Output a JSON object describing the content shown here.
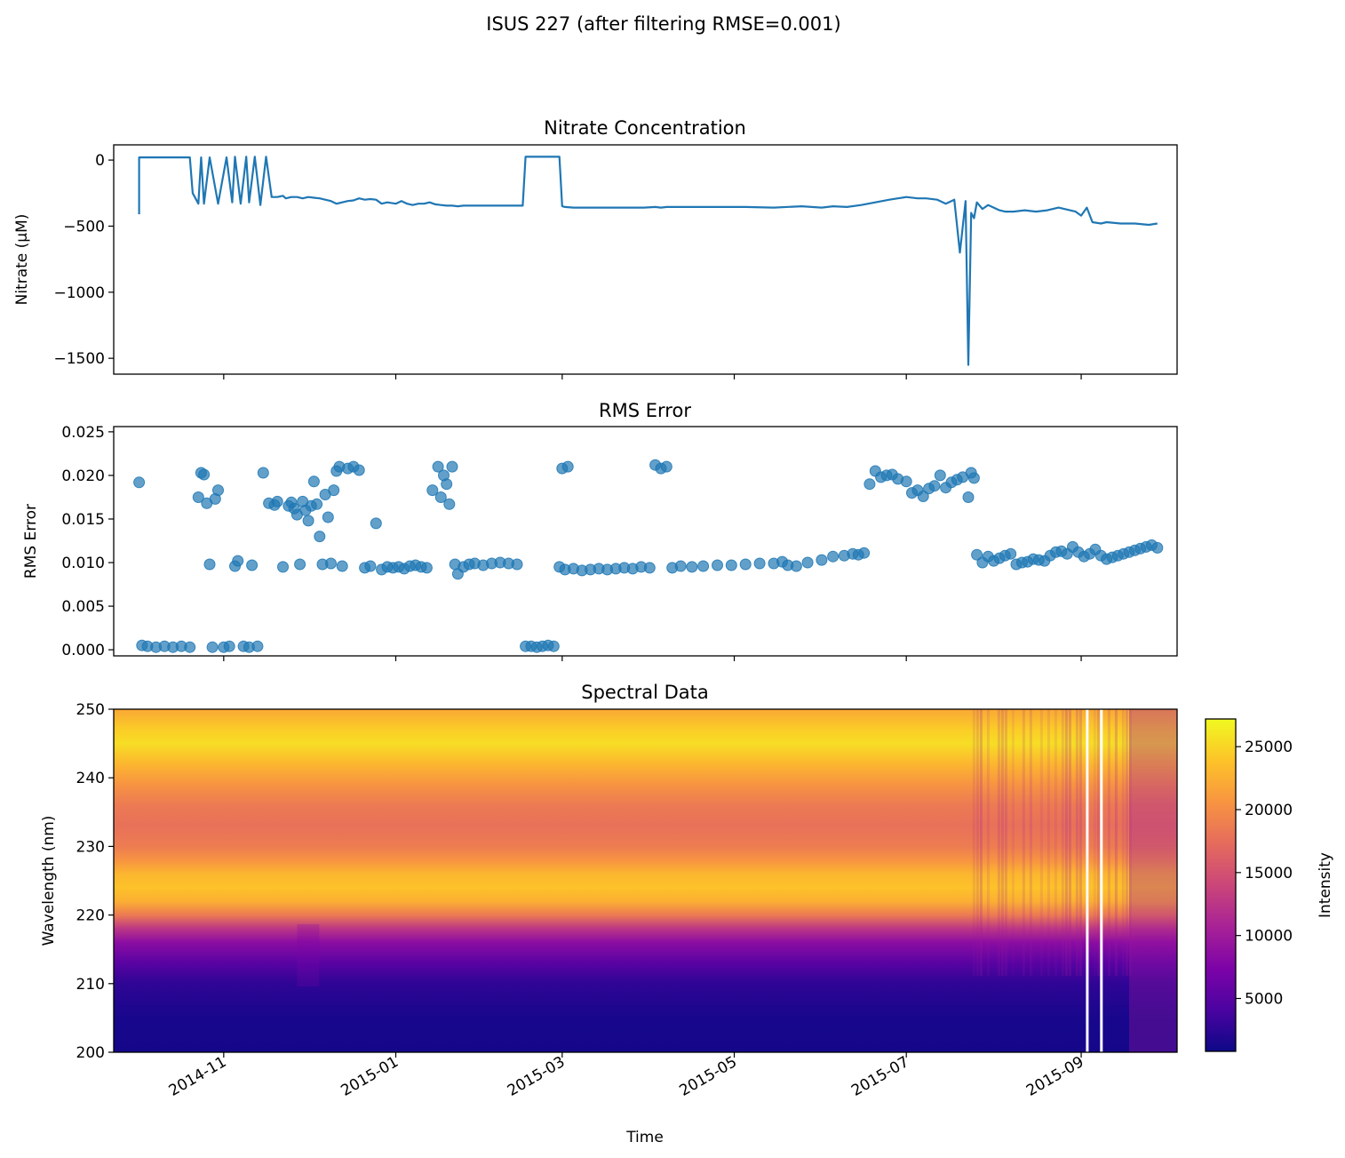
{
  "suptitle": "ISUS 227 (after filtering RMSE=0.001)",
  "chart_data": [
    {
      "type": "line",
      "title": "Nitrate Concentration",
      "xlabel": "",
      "ylabel": "Nitrate (µM)",
      "yticks": [
        0,
        -500,
        -1000,
        -1500
      ],
      "ytick_labels": [
        "0",
        "−500",
        "−1000",
        "−1500"
      ],
      "ylim": [
        -1620,
        115
      ],
      "xlim": [
        "2014-09-23",
        "2015-10-05"
      ],
      "line_color": "#1f77b4",
      "series": [
        {
          "x": [
            "2014-10-02",
            "2014-10-02",
            "2014-10-02",
            "2014-10-12",
            "2014-10-20",
            "2014-10-21",
            "2014-10-23",
            "2014-10-24",
            "2014-10-25",
            "2014-10-27",
            "2014-10-30",
            "2014-11-02",
            "2014-11-04",
            "2014-11-05",
            "2014-11-07",
            "2014-11-09",
            "2014-11-10",
            "2014-11-12",
            "2014-11-14",
            "2014-11-16",
            "2014-11-18",
            "2014-11-20",
            "2014-11-22",
            "2014-11-23",
            "2014-11-25",
            "2014-11-27",
            "2014-11-29",
            "2014-12-01",
            "2014-12-03",
            "2014-12-05",
            "2014-12-07",
            "2014-12-09",
            "2014-12-11",
            "2014-12-13",
            "2014-12-15",
            "2014-12-17",
            "2014-12-19",
            "2014-12-21",
            "2014-12-23",
            "2014-12-25",
            "2014-12-27",
            "2014-12-29",
            "2015-01-01",
            "2015-01-03",
            "2015-01-05",
            "2015-01-07",
            "2015-01-09",
            "2015-01-11",
            "2015-01-13",
            "2015-01-15",
            "2015-01-17",
            "2015-01-19",
            "2015-01-21",
            "2015-01-23",
            "2015-01-25",
            "2015-01-28",
            "2015-02-01",
            "2015-02-05",
            "2015-02-10",
            "2015-02-15",
            "2015-02-16",
            "2015-02-20",
            "2015-02-25",
            "2015-02-28",
            "2015-03-01",
            "2015-03-02",
            "2015-03-05",
            "2015-03-10",
            "2015-03-15",
            "2015-03-20",
            "2015-03-25",
            "2015-03-30",
            "2015-04-03",
            "2015-04-05",
            "2015-04-07",
            "2015-04-15",
            "2015-04-25",
            "2015-05-05",
            "2015-05-15",
            "2015-05-25",
            "2015-06-01",
            "2015-06-05",
            "2015-06-10",
            "2015-06-15",
            "2015-06-20",
            "2015-06-25",
            "2015-06-28",
            "2015-07-01",
            "2015-07-05",
            "2015-07-08",
            "2015-07-12",
            "2015-07-15",
            "2015-07-18",
            "2015-07-20",
            "2015-07-22",
            "2015-07-23",
            "2015-07-24",
            "2015-07-25",
            "2015-07-26",
            "2015-07-28",
            "2015-07-30",
            "2015-08-01",
            "2015-08-03",
            "2015-08-05",
            "2015-08-08",
            "2015-08-12",
            "2015-08-16",
            "2015-08-20",
            "2015-08-24",
            "2015-08-28",
            "2015-08-30",
            "2015-09-01",
            "2015-09-03",
            "2015-09-05",
            "2015-09-08",
            "2015-09-10",
            "2015-09-15",
            "2015-09-20",
            "2015-09-25",
            "2015-09-28"
          ],
          "y": [
            -410,
            20,
            20,
            20,
            20,
            -250,
            -330,
            20,
            -330,
            20,
            -330,
            20,
            -320,
            25,
            -330,
            25,
            -320,
            25,
            -340,
            25,
            -280,
            -280,
            -270,
            -290,
            -280,
            -280,
            -290,
            -280,
            -285,
            -290,
            -300,
            -310,
            -330,
            -320,
            -310,
            -305,
            -290,
            -300,
            -295,
            -300,
            -330,
            -320,
            -330,
            -310,
            -330,
            -340,
            -330,
            -330,
            -320,
            -335,
            -340,
            -345,
            -345,
            -350,
            -345,
            -345,
            -345,
            -345,
            -345,
            -345,
            25,
            25,
            25,
            25,
            -350,
            -355,
            -360,
            -360,
            -360,
            -360,
            -360,
            -360,
            -355,
            -360,
            -355,
            -355,
            -355,
            -355,
            -360,
            -350,
            -360,
            -350,
            -355,
            -340,
            -320,
            -300,
            -290,
            -280,
            -290,
            -290,
            -300,
            -330,
            -300,
            -700,
            -310,
            -1550,
            -400,
            -440,
            -320,
            -370,
            -340,
            -360,
            -380,
            -390,
            -390,
            -380,
            -390,
            -380,
            -360,
            -380,
            -390,
            -420,
            -360,
            -470,
            -480,
            -470,
            -480,
            -480,
            -490,
            -480
          ]
        }
      ]
    },
    {
      "type": "scatter",
      "title": "RMS Error",
      "xlabel": "",
      "ylabel": "RMS Error",
      "yticks": [
        0,
        0.005,
        0.01,
        0.015,
        0.02,
        0.025
      ],
      "ytick_labels": [
        "0.000",
        "0.005",
        "0.010",
        "0.015",
        "0.020",
        "0.025"
      ],
      "ylim": [
        -0.0007,
        0.0256
      ],
      "xlim": [
        "2014-09-23",
        "2015-10-05"
      ],
      "marker_color": "#1f77b4",
      "series": [
        {
          "x": [
            "2014-10-02",
            "2014-10-03",
            "2014-10-05",
            "2014-10-08",
            "2014-10-11",
            "2014-10-14",
            "2014-10-17",
            "2014-10-20",
            "2014-10-23",
            "2014-10-24",
            "2014-10-25",
            "2014-10-26",
            "2014-10-27",
            "2014-10-28",
            "2014-10-29",
            "2014-10-30",
            "2014-11-01",
            "2014-11-03",
            "2014-11-05",
            "2014-11-06",
            "2014-11-08",
            "2014-11-10",
            "2014-11-11",
            "2014-11-13",
            "2014-11-15",
            "2014-11-17",
            "2014-11-19",
            "2014-11-20",
            "2014-11-22",
            "2014-11-24",
            "2014-11-25",
            "2014-11-26",
            "2014-11-27",
            "2014-11-28",
            "2014-11-29",
            "2014-11-30",
            "2014-12-01",
            "2014-12-02",
            "2014-12-03",
            "2014-12-04",
            "2014-12-05",
            "2014-12-06",
            "2014-12-07",
            "2014-12-08",
            "2014-12-09",
            "2014-12-10",
            "2014-12-11",
            "2014-12-12",
            "2014-12-13",
            "2014-12-15",
            "2014-12-17",
            "2014-12-19",
            "2014-12-21",
            "2014-12-23",
            "2014-12-25",
            "2014-12-27",
            "2014-12-29",
            "2014-12-31",
            "2015-01-02",
            "2015-01-04",
            "2015-01-06",
            "2015-01-08",
            "2015-01-10",
            "2015-01-12",
            "2015-01-14",
            "2015-01-16",
            "2015-01-17",
            "2015-01-18",
            "2015-01-19",
            "2015-01-20",
            "2015-01-21",
            "2015-01-22",
            "2015-01-23",
            "2015-01-25",
            "2015-01-27",
            "2015-01-29",
            "2015-02-01",
            "2015-02-04",
            "2015-02-07",
            "2015-02-10",
            "2015-02-13",
            "2015-02-16",
            "2015-02-18",
            "2015-02-20",
            "2015-02-22",
            "2015-02-24",
            "2015-02-26",
            "2015-02-28",
            "2015-03-01",
            "2015-03-02",
            "2015-03-03",
            "2015-03-05",
            "2015-03-08",
            "2015-03-11",
            "2015-03-14",
            "2015-03-17",
            "2015-03-20",
            "2015-03-23",
            "2015-03-26",
            "2015-03-29",
            "2015-04-01",
            "2015-04-03",
            "2015-04-05",
            "2015-04-07",
            "2015-04-09",
            "2015-04-12",
            "2015-04-16",
            "2015-04-20",
            "2015-04-25",
            "2015-04-30",
            "2015-05-05",
            "2015-05-10",
            "2015-05-15",
            "2015-05-18",
            "2015-05-20",
            "2015-05-23",
            "2015-05-27",
            "2015-06-01",
            "2015-06-05",
            "2015-06-09",
            "2015-06-12",
            "2015-06-14",
            "2015-06-16",
            "2015-06-18",
            "2015-06-20",
            "2015-06-22",
            "2015-06-24",
            "2015-06-26",
            "2015-06-28",
            "2015-07-01",
            "2015-07-03",
            "2015-07-05",
            "2015-07-07",
            "2015-07-09",
            "2015-07-11",
            "2015-07-13",
            "2015-07-15",
            "2015-07-17",
            "2015-07-19",
            "2015-07-21",
            "2015-07-23",
            "2015-07-24",
            "2015-07-25",
            "2015-07-26",
            "2015-07-28",
            "2015-07-30",
            "2015-08-01",
            "2015-08-03",
            "2015-08-05",
            "2015-08-07",
            "2015-08-09",
            "2015-08-11",
            "2015-08-13",
            "2015-08-15",
            "2015-08-17",
            "2015-08-19",
            "2015-08-21",
            "2015-08-23",
            "2015-08-25",
            "2015-08-27",
            "2015-08-29",
            "2015-08-31",
            "2015-09-02",
            "2015-09-04",
            "2015-09-06",
            "2015-09-08",
            "2015-09-10",
            "2015-09-12",
            "2015-09-14",
            "2015-09-16",
            "2015-09-18",
            "2015-09-20",
            "2015-09-22",
            "2015-09-24",
            "2015-09-26",
            "2015-09-28"
          ],
          "y": [
            0.0192,
            0.0005,
            0.0004,
            0.0003,
            0.0004,
            0.0003,
            0.0004,
            0.0003,
            0.0175,
            0.0203,
            0.0201,
            0.0168,
            0.0098,
            0.0003,
            0.0173,
            0.0183,
            0.0003,
            0.0004,
            0.0096,
            0.0102,
            0.0004,
            0.0003,
            0.0097,
            0.0004,
            0.0203,
            0.0168,
            0.0166,
            0.017,
            0.0095,
            0.0165,
            0.0169,
            0.0162,
            0.0155,
            0.0098,
            0.017,
            0.016,
            0.0148,
            0.0165,
            0.0193,
            0.0167,
            0.013,
            0.0098,
            0.0178,
            0.0152,
            0.0099,
            0.0183,
            0.0205,
            0.021,
            0.0096,
            0.0208,
            0.021,
            0.0206,
            0.0094,
            0.0096,
            0.0145,
            0.0092,
            0.0095,
            0.0094,
            0.0095,
            0.0093,
            0.0096,
            0.0097,
            0.0095,
            0.0094,
            0.0183,
            0.021,
            0.0175,
            0.02,
            0.019,
            0.0167,
            0.021,
            0.0098,
            0.0087,
            0.0095,
            0.0098,
            0.0099,
            0.0097,
            0.0099,
            0.01,
            0.0099,
            0.0098,
            0.0004,
            0.0004,
            0.0003,
            0.0004,
            0.0005,
            0.0004,
            0.0095,
            0.0208,
            0.0092,
            0.021,
            0.0093,
            0.0091,
            0.0092,
            0.0093,
            0.0092,
            0.0093,
            0.0094,
            0.0093,
            0.0095,
            0.0094,
            0.0212,
            0.0208,
            0.021,
            0.0094,
            0.0096,
            0.0095,
            0.0096,
            0.0097,
            0.0097,
            0.0098,
            0.0099,
            0.0099,
            0.0101,
            0.0097,
            0.0096,
            0.01,
            0.0103,
            0.0107,
            0.0108,
            0.011,
            0.0109,
            0.0111,
            0.019,
            0.0205,
            0.0198,
            0.02,
            0.0201,
            0.0196,
            0.0193,
            0.018,
            0.0183,
            0.0176,
            0.0185,
            0.0188,
            0.02,
            0.0186,
            0.0192,
            0.0195,
            0.0198,
            0.0175,
            0.0203,
            0.0197,
            0.0109,
            0.01,
            0.0107,
            0.0102,
            0.0105,
            0.0108,
            0.011,
            0.0098,
            0.01,
            0.0101,
            0.0104,
            0.0103,
            0.0102,
            0.0108,
            0.0112,
            0.0113,
            0.011,
            0.0118,
            0.0112,
            0.0107,
            0.011,
            0.0115,
            0.0108,
            0.0104,
            0.0106,
            0.0108,
            0.011,
            0.0112,
            0.0114,
            0.0116,
            0.0118,
            0.012,
            0.0117
          ]
        }
      ]
    },
    {
      "type": "heatmap",
      "title": "Spectral Data",
      "xlabel": "Time",
      "ylabel": "Wavelength (nm)",
      "yticks": [
        200,
        210,
        220,
        230,
        240,
        250
      ],
      "ylim": [
        200,
        250
      ],
      "xlim": [
        "2014-09-23",
        "2015-10-05"
      ],
      "xticks": [
        "2014-11-01",
        "2015-01-01",
        "2015-03-01",
        "2015-05-01",
        "2015-07-01",
        "2015-09-01"
      ],
      "xtick_labels": [
        "2014-11",
        "2015-01",
        "2015-03",
        "2015-05",
        "2015-07",
        "2015-09"
      ],
      "colormap": "plasma",
      "colorbar": {
        "label": "Intensity",
        "range": [
          800,
          27200
        ],
        "ticks": [
          5000,
          10000,
          15000,
          20000,
          25000
        ]
      },
      "wavelength_profile": {
        "wavelength": [
          200,
          205,
          210,
          213,
          216,
          218,
          220,
          222,
          224,
          226,
          228,
          230,
          233,
          236,
          239,
          242,
          245,
          247,
          250
        ],
        "intensity": [
          1200,
          1400,
          2600,
          5000,
          8500,
          12500,
          18500,
          22500,
          23800,
          23000,
          20500,
          18700,
          17800,
          18500,
          20500,
          23000,
          25500,
          24500,
          22000
        ]
      },
      "gaps": [
        "2015-09-03",
        "2015-09-08"
      ]
    }
  ]
}
